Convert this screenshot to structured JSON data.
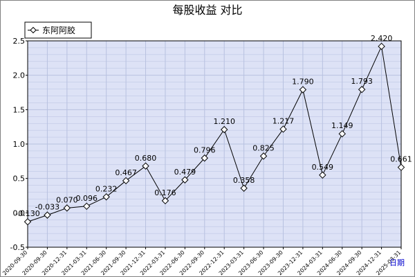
{
  "chart_data": {
    "type": "line",
    "title": "每股收益  对比",
    "xlabel": "日期",
    "ylabel": "",
    "ylim": [
      -0.5,
      2.5
    ],
    "yticks": [
      "2.5",
      "2.0",
      "1.5",
      "1.0",
      "0.5",
      "0.0",
      "-0.5"
    ],
    "grid": true,
    "legend_position": "top-left",
    "categories": [
      "2020-09-30",
      "2020-09-30",
      "2020-12-31",
      "2021-03-31",
      "2021-06-30",
      "2021-09-30",
      "2021-12-31",
      "2022-03-31",
      "2022-06-30",
      "2022-09-30",
      "2022-12-31",
      "2023-03-31",
      "2023-06-30",
      "2023-09-30",
      "2023-12-31",
      "2024-03-31",
      "2024-06-30",
      "2024-09-30",
      "2024-12-31",
      "2025-03-31"
    ],
    "series": [
      {
        "name": "东阿阿胶",
        "values": [
          -0.13,
          -0.033,
          0.07,
          0.096,
          0.232,
          0.467,
          0.68,
          0.176,
          0.479,
          0.796,
          1.21,
          0.358,
          0.825,
          1.217,
          1.79,
          0.549,
          1.149,
          1.793,
          2.42,
          0.661
        ],
        "labels": [
          "-0.130",
          "-0.033",
          "0.070",
          "0.096",
          "0.232",
          "0.467",
          "0.680",
          "0.176",
          "0.479",
          "0.796",
          "1.210",
          "0.358",
          "0.825",
          "1.217",
          "1.790",
          "0.549",
          "1.149",
          "1.793",
          "2.420",
          "0.661"
        ],
        "color": "#000000"
      }
    ],
    "plot_bg": "#dde2f6",
    "grid_color": "#b8c1e0"
  }
}
